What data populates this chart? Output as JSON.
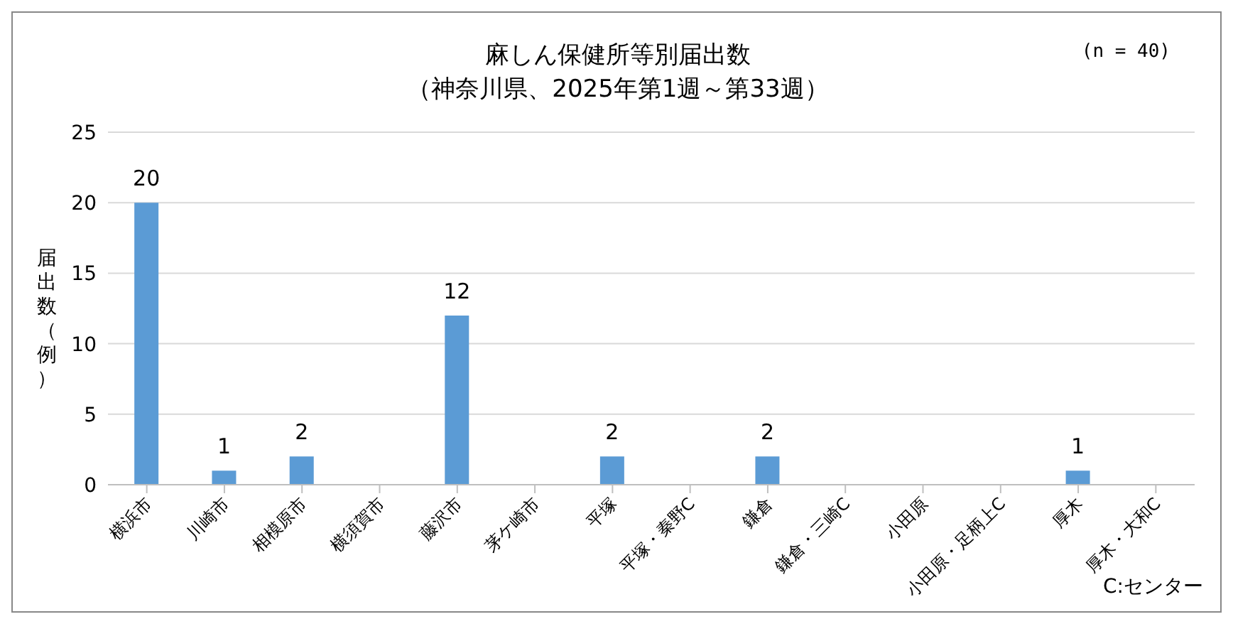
{
  "chart_data": {
    "type": "bar",
    "title": "麻しん保健所等別届出数",
    "subtitle": "（神奈川県、2025年第1週～第33週）",
    "ylabel": "届出数（例）",
    "categories": [
      "横浜市",
      "川崎市",
      "相模原市",
      "横須賀市",
      "藤沢市",
      "茅ケ崎市",
      "平塚",
      "平塚・秦野C",
      "鎌倉",
      "鎌倉・三崎C",
      "小田原",
      "小田原・足柄上C",
      "厚木",
      "厚木・大和C"
    ],
    "values": [
      20,
      1,
      2,
      0,
      12,
      0,
      2,
      0,
      2,
      0,
      0,
      0,
      1,
      0
    ],
    "value_labels": [
      "20",
      "1",
      "2",
      null,
      "12",
      null,
      "2",
      null,
      "2",
      null,
      null,
      null,
      "1",
      null
    ],
    "color": "#5b9bd5",
    "ylim": [
      0,
      25
    ],
    "yticks": [
      0,
      5,
      10,
      15,
      20,
      25
    ],
    "grid": "y",
    "legend": false,
    "annotations": [
      "(n = 40)",
      "C:センター"
    ]
  }
}
